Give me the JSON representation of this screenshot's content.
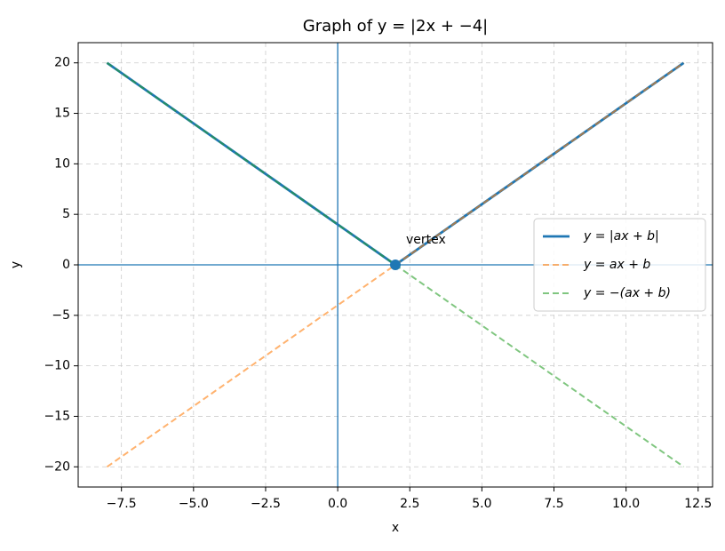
{
  "chart_data": {
    "type": "line",
    "title": "Graph of y = |2x + −4|",
    "x_label": "x",
    "y_label": "y",
    "x": [
      -8,
      2,
      12
    ],
    "series": [
      {
        "name": "y = |ax + b|",
        "color": "#1f77b4",
        "style": "solid",
        "values": [
          20,
          0,
          20
        ]
      },
      {
        "name": "y = ax + b",
        "color": "#ff7f0e",
        "style": "dashed",
        "values": [
          -20,
          0,
          20
        ]
      },
      {
        "name": "y = −(ax + b)",
        "color": "#2ca02c",
        "style": "dashed",
        "values": [
          20,
          0,
          -20
        ]
      }
    ],
    "points": [
      {
        "x": 2,
        "y": 0,
        "label": "vertex",
        "color": "#1f77b4"
      }
    ],
    "hlines": [
      0
    ],
    "vlines": [
      0
    ],
    "ref_color": "#1f77b4",
    "xlim": [
      -9,
      13
    ],
    "ylim": [
      -22,
      22
    ],
    "xticks": [
      {
        "value": -7.5,
        "label": "−7.5"
      },
      {
        "value": -5,
        "label": "−5.0"
      },
      {
        "value": -2.5,
        "label": "−2.5"
      },
      {
        "value": 0,
        "label": "0.0"
      },
      2.5,
      {
        "value": 5,
        "label": "5.0"
      },
      7.5,
      {
        "value": 10,
        "label": "10.0"
      },
      12.5
    ],
    "yticks": [
      {
        "value": -20,
        "label": "−20"
      },
      {
        "value": -15,
        "label": "−15"
      },
      {
        "value": -10,
        "label": "−10"
      },
      {
        "value": -5,
        "label": "−5"
      },
      0,
      5,
      10,
      15,
      20
    ],
    "grid": true,
    "legend": "right"
  }
}
